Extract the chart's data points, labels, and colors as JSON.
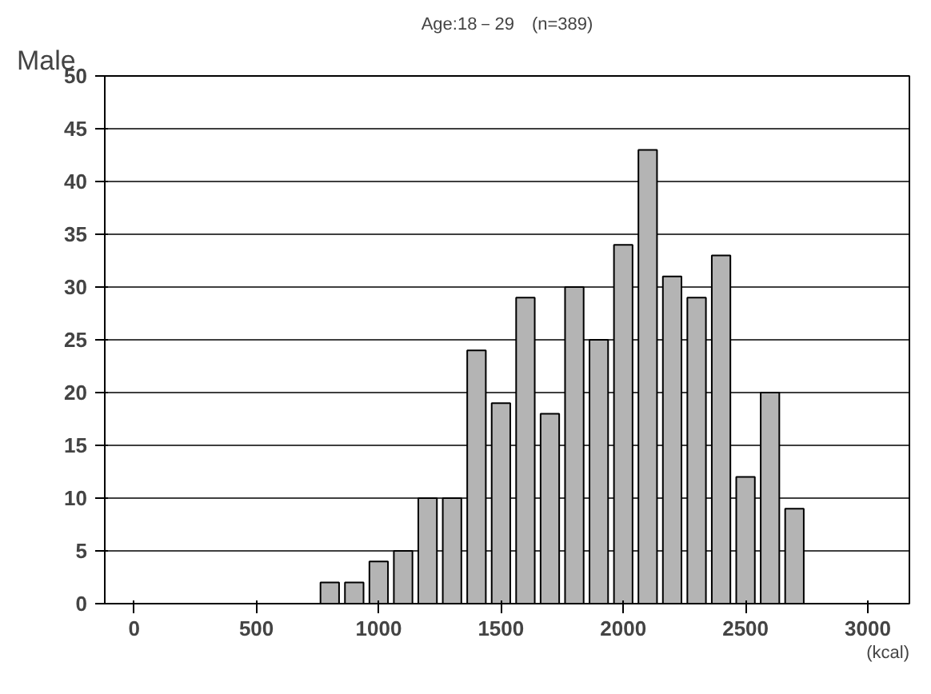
{
  "chart_data": {
    "type": "histogram",
    "title": "Age:18－29　(n=389)",
    "ylabel": "Male",
    "xlabel": "(kcal)",
    "bins": [
      750,
      850,
      950,
      1050,
      1150,
      1250,
      1350,
      1450,
      1550,
      1650,
      1750,
      1850,
      1950,
      2050,
      2150,
      2250,
      2350,
      2450,
      2550,
      2650,
      2750
    ],
    "values": [
      2,
      2,
      4,
      5,
      10,
      10,
      24,
      19,
      29,
      18,
      30,
      25,
      34,
      43,
      31,
      29,
      33,
      12,
      20,
      9
    ],
    "color": "#b4b4b4",
    "xlim": [
      -120,
      3170
    ],
    "xticks": [
      0,
      500,
      1000,
      1500,
      2000,
      2500,
      3000
    ],
    "ylim": [
      0,
      50
    ],
    "yticks": [
      0,
      5,
      10,
      15,
      20,
      25,
      30,
      35,
      40,
      45,
      50
    ],
    "grid": "y"
  }
}
